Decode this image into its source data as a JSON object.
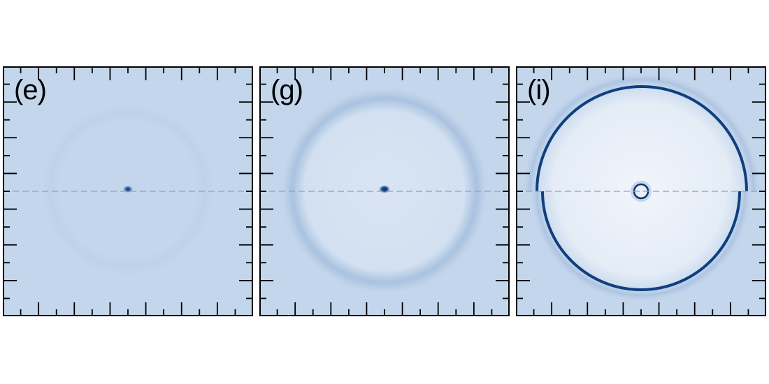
{
  "panels": [
    {
      "label": "(e)"
    },
    {
      "label": "(g)"
    },
    {
      "label": "(i)"
    }
  ],
  "colors": {
    "background": "#c4d6ec",
    "dark": "#0b3470",
    "frame": "#000000",
    "center_line": "#8aa2bf"
  }
}
